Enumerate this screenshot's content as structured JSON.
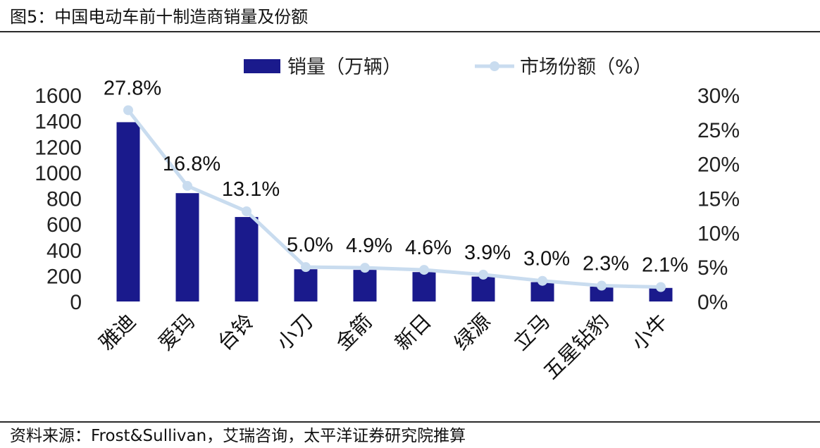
{
  "figure": {
    "title": "图5：中国电动车前十制造商销量及份额",
    "source": "资料来源：Frost&Sullivan，艾瑞咨询，太平洋证券研究院推算"
  },
  "chart_data": {
    "type": "bar",
    "categories": [
      "雅迪",
      "爱玛",
      "台铃",
      "小刀",
      "金箭",
      "新日",
      "绿源",
      "立马",
      "五星钻豹",
      "小牛"
    ],
    "series": [
      {
        "name": "销量（万辆）",
        "type": "bar",
        "axis": "left",
        "color": "#1a1a8c",
        "values": [
          1390,
          840,
          655,
          250,
          245,
          228,
          193,
          150,
          115,
          105
        ]
      },
      {
        "name": "市场份额（%）",
        "type": "line",
        "axis": "right",
        "color": "#c9dcef",
        "values": [
          27.8,
          16.8,
          13.1,
          5.0,
          4.9,
          4.6,
          3.9,
          3.0,
          2.3,
          2.1
        ],
        "labels": [
          "27.8%",
          "16.8%",
          "13.1%",
          "5.0%",
          "4.9%",
          "4.6%",
          "3.9%",
          "3.0%",
          "2.3%",
          "2.1%"
        ]
      }
    ],
    "y_left": {
      "ylim": [
        0,
        1600
      ],
      "ticks": [
        "0",
        "200",
        "400",
        "600",
        "800",
        "1000",
        "1200",
        "1400",
        "1600"
      ]
    },
    "y_right": {
      "ylim": [
        0,
        30
      ],
      "ticks": [
        "0%",
        "5%",
        "10%",
        "15%",
        "20%",
        "25%",
        "30%"
      ]
    },
    "grid": false,
    "legend": "top"
  }
}
